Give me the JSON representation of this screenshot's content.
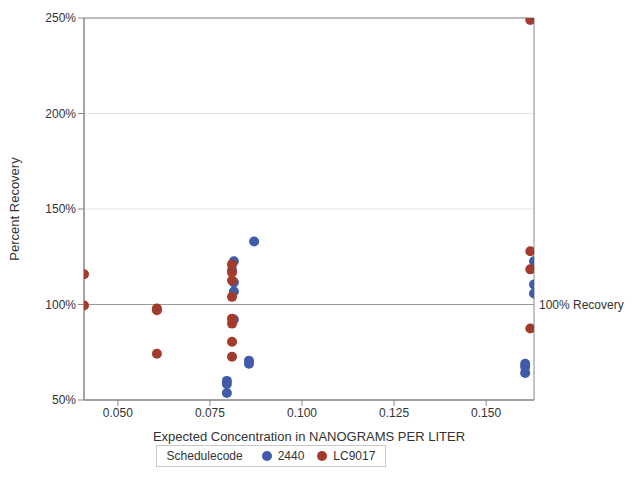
{
  "chart_data": {
    "type": "scatter",
    "x_label": "Expected Concentration in NANOGRAMS PER LITER",
    "y_label": "Percent Recovery",
    "legend_title": "Schedulecode",
    "legend": "bottom",
    "grid": true,
    "marker": "circle",
    "xlim": [
      0.0408,
      0.163
    ],
    "ylim": [
      50,
      250
    ],
    "xticks": [
      {
        "value": 0.05,
        "label": "0.050"
      },
      {
        "value": 0.075,
        "label": "0.075"
      },
      {
        "value": 0.1,
        "label": "0.100"
      },
      {
        "value": 0.125,
        "label": "0.125"
      },
      {
        "value": 0.15,
        "label": "0.150"
      }
    ],
    "yticks": [
      {
        "value": 50,
        "label": "50%"
      },
      {
        "value": 100,
        "label": "100%"
      },
      {
        "value": 150,
        "label": "150%"
      },
      {
        "value": 200,
        "label": "200%"
      },
      {
        "value": 250,
        "label": "250%"
      }
    ],
    "reference_line": {
      "value": 100,
      "label": "100% Recovery"
    },
    "series": [
      {
        "name": "2440",
        "color": "#3f5ba9",
        "x": [
          0.0815,
          0.081,
          0.0815,
          0.0815,
          0.0815,
          0.0796,
          0.0796,
          0.0796,
          0.0856,
          0.0856,
          0.087,
          0.1606,
          0.1606,
          0.1606,
          0.163,
          0.163,
          0.163
        ],
        "values": [
          122.6,
          117.9,
          111.6,
          106.8,
          92.1,
          60,
          58.4,
          53.7,
          70.5,
          69,
          133,
          69,
          67.4,
          64.2,
          122.6,
          110.5,
          105.8
        ]
      },
      {
        "name": "LC9017",
        "color": "#a33b2c",
        "x": [
          0.0408,
          0.0408,
          0.0606,
          0.0606,
          0.0606,
          0.081,
          0.081,
          0.081,
          0.081,
          0.081,
          0.081,
          0.081,
          0.081,
          0.162,
          0.162,
          0.162,
          0.162
        ],
        "values": [
          115.8,
          99.5,
          97.9,
          97,
          74.2,
          121,
          116.8,
          112.6,
          104,
          92.6,
          90,
          80.5,
          72.6,
          249,
          127.9,
          118.4,
          87.4
        ]
      }
    ]
  }
}
